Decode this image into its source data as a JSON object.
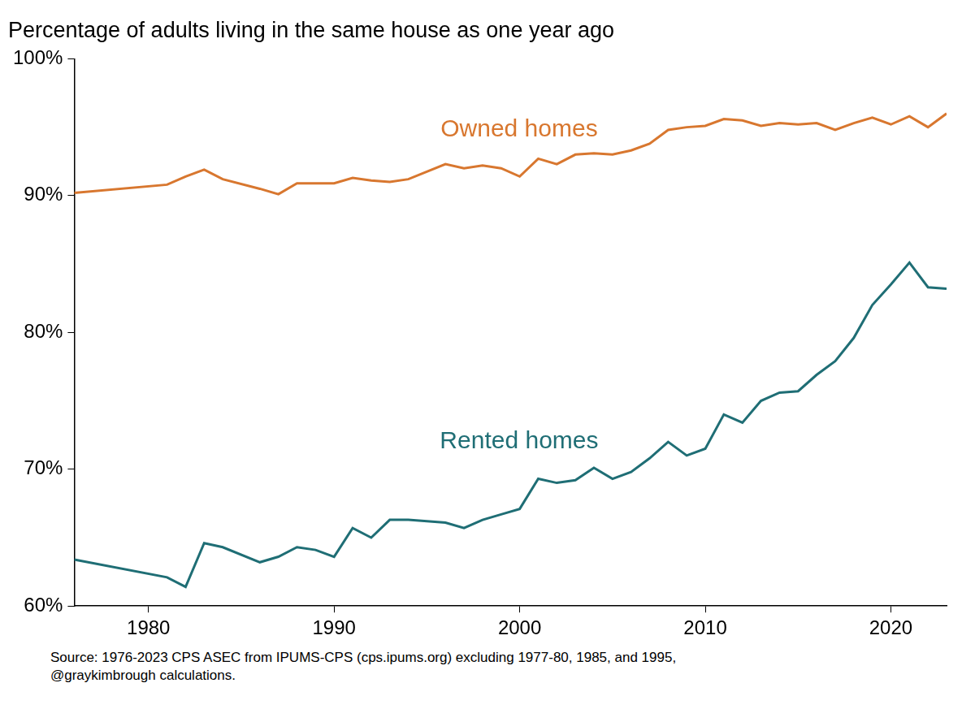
{
  "chart_data": {
    "type": "line",
    "title": "Percentage of adults living in the same house as one year ago",
    "source": [
      "Source: 1976-2023 CPS ASEC from IPUMS-CPS (cps.ipums.org) excluding 1977-80, 1985, and 1995,",
      "@graykimbrough calculations."
    ],
    "x": [
      1976,
      1981,
      1982,
      1983,
      1984,
      1986,
      1987,
      1988,
      1989,
      1990,
      1991,
      1992,
      1993,
      1994,
      1996,
      1997,
      1998,
      1999,
      2000,
      2001,
      2002,
      2003,
      2004,
      2005,
      2006,
      2007,
      2008,
      2009,
      2010,
      2011,
      2012,
      2013,
      2014,
      2015,
      2016,
      2017,
      2018,
      2019,
      2020,
      2021,
      2022,
      2023
    ],
    "series": [
      {
        "name": "Owned homes",
        "color": "#d8772f",
        "values": [
          90.2,
          90.8,
          91.4,
          91.9,
          91.2,
          90.5,
          90.1,
          90.9,
          90.9,
          90.9,
          91.3,
          91.1,
          91.0,
          91.2,
          92.3,
          92.0,
          92.2,
          92.0,
          91.4,
          92.7,
          92.3,
          93.0,
          93.1,
          93.0,
          93.3,
          93.8,
          94.8,
          95.0,
          95.1,
          95.6,
          95.5,
          95.1,
          95.3,
          95.2,
          95.3,
          94.8,
          95.3,
          95.7,
          95.2,
          95.8,
          95.0,
          96.0
        ]
      },
      {
        "name": "Rented homes",
        "color": "#1f6e75",
        "values": [
          63.4,
          62.1,
          61.4,
          64.6,
          64.3,
          63.2,
          63.6,
          64.3,
          64.1,
          63.6,
          65.7,
          65.0,
          66.3,
          66.3,
          66.1,
          65.7,
          66.3,
          66.7,
          67.1,
          69.3,
          69.0,
          69.2,
          70.1,
          69.3,
          69.8,
          70.8,
          72.0,
          71.0,
          71.5,
          74.0,
          73.4,
          75.0,
          75.6,
          75.7,
          76.9,
          77.9,
          79.6,
          82.0,
          83.5,
          85.1,
          83.3,
          83.2
        ]
      }
    ],
    "xlim": [
      1976,
      2023
    ],
    "xticks": [
      1980,
      1990,
      2000,
      2010,
      2020
    ],
    "ylim": [
      60,
      100
    ],
    "yticks": [
      {
        "value": 60,
        "label": "60%"
      },
      {
        "value": 70,
        "label": "70%"
      },
      {
        "value": 80,
        "label": "80%"
      },
      {
        "value": 90,
        "label": "90%"
      },
      {
        "value": 100,
        "label": "100%"
      }
    ],
    "grid": false
  }
}
